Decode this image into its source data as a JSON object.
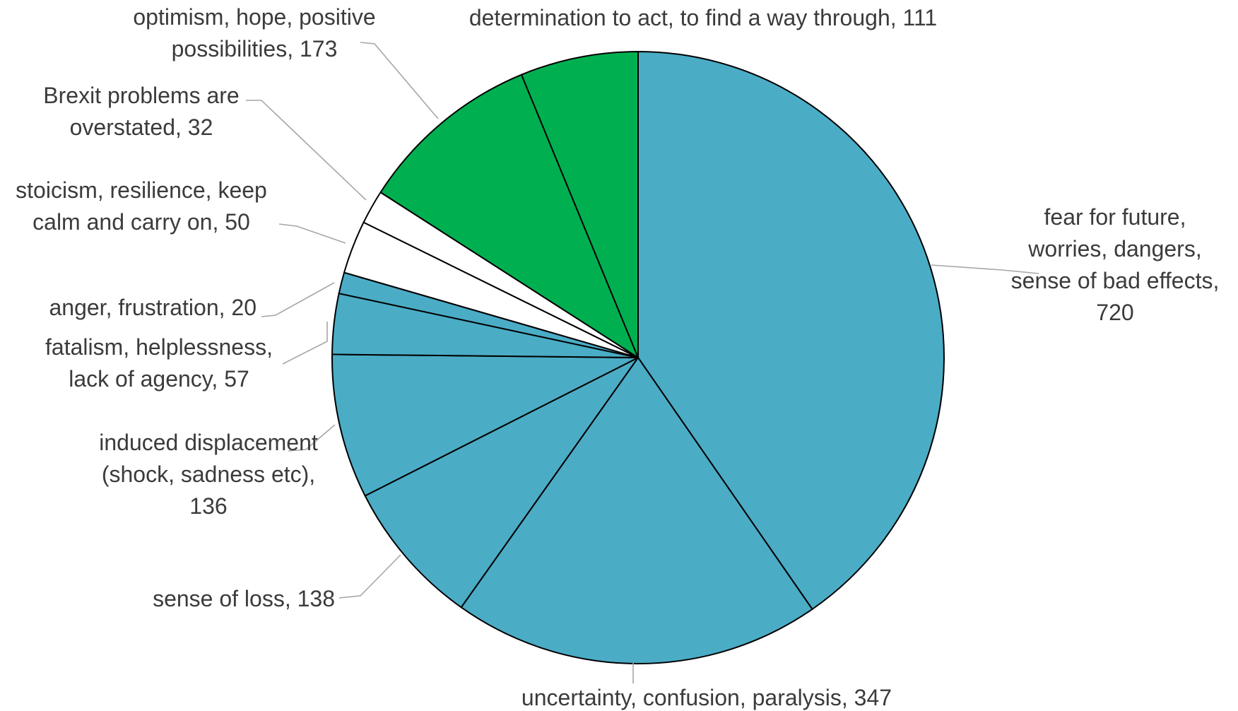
{
  "chart_data": {
    "type": "pie",
    "title": "",
    "start": "12 o'clock",
    "direction": "clockwise",
    "slices": [
      {
        "label_lines": [
          "fear for future,",
          "worries, dangers,",
          "sense of bad effects,",
          "720"
        ],
        "value": 720,
        "color": "#4bacc6"
      },
      {
        "label_lines": [
          "uncertainty, confusion, paralysis, 347"
        ],
        "value": 347,
        "color": "#4bacc6"
      },
      {
        "label_lines": [
          "sense of loss, 138"
        ],
        "value": 138,
        "color": "#4bacc6"
      },
      {
        "label_lines": [
          "induced displacement",
          "(shock, sadness etc),",
          "136"
        ],
        "value": 136,
        "color": "#4bacc6"
      },
      {
        "label_lines": [
          "fatalism, helplessness,",
          "lack of agency, 57"
        ],
        "value": 57,
        "color": "#4bacc6"
      },
      {
        "label_lines": [
          "anger, frustration, 20"
        ],
        "value": 20,
        "color": "#4bacc6"
      },
      {
        "label_lines": [
          "stoicism, resilience, keep",
          "calm and carry on, 50"
        ],
        "value": 50,
        "color": "#ffffff"
      },
      {
        "label_lines": [
          "Brexit problems are",
          "overstated, 32"
        ],
        "value": 32,
        "color": "#ffffff"
      },
      {
        "label_lines": [
          "optimism, hope, positive",
          "possibilities, 173"
        ],
        "value": 173,
        "color": "#00b050"
      },
      {
        "label_lines": [
          "determination to act, to find a way through, 111"
        ],
        "value": 111,
        "color": "#00b050"
      }
    ]
  }
}
